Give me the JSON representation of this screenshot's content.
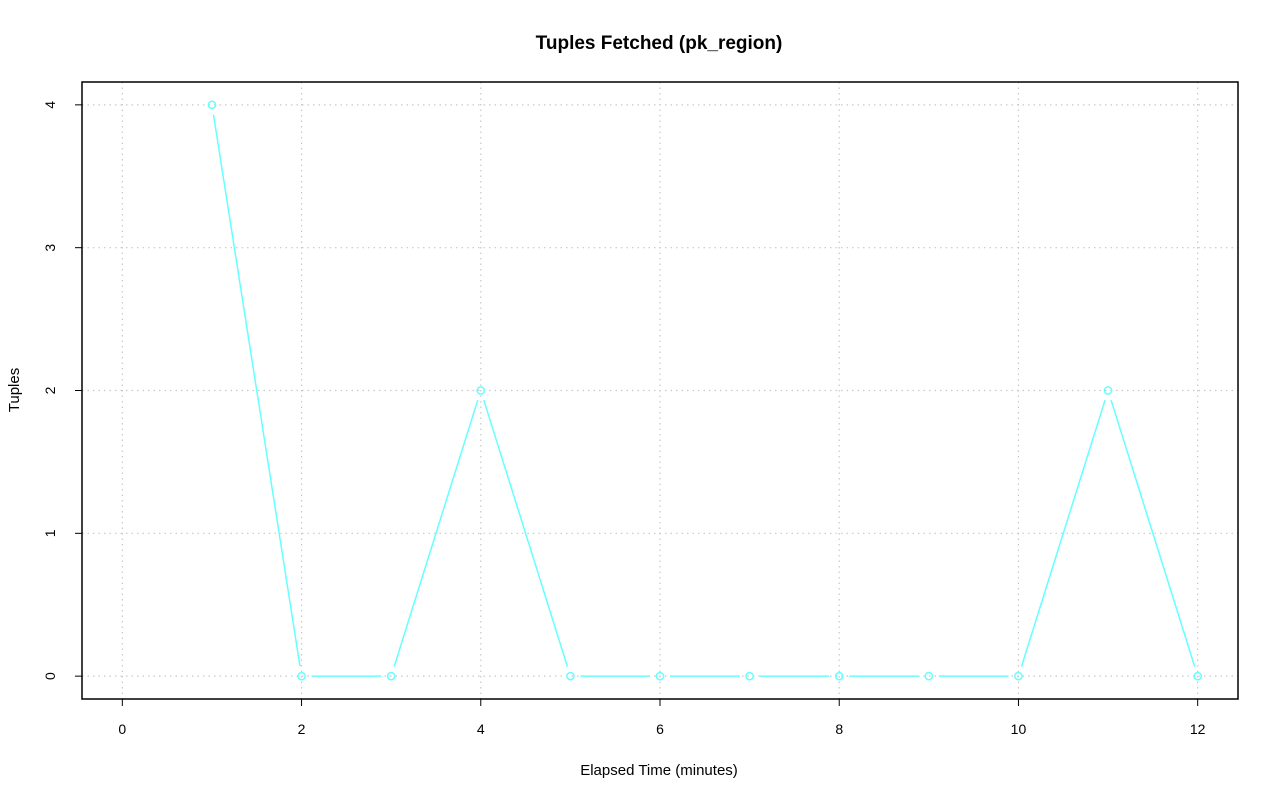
{
  "chart_data": {
    "type": "line",
    "title": "Tuples Fetched (pk_region)",
    "xlabel": "Elapsed Time (minutes)",
    "ylabel": "Tuples",
    "xlim": [
      -0.45,
      12.45
    ],
    "ylim": [
      -0.16,
      4.16
    ],
    "xticks": [
      0,
      2,
      4,
      6,
      8,
      10,
      12
    ],
    "yticks": [
      0,
      1,
      2,
      3,
      4
    ],
    "grid": true,
    "legend": "none",
    "series": [
      {
        "color": "#66ffff",
        "marker": "open-circle",
        "x": [
          1,
          2,
          3,
          4,
          5,
          6,
          7,
          8,
          9,
          10,
          11,
          12
        ],
        "y": [
          4,
          0,
          0,
          2,
          0,
          0,
          0,
          0,
          0,
          0,
          2,
          0
        ]
      }
    ]
  }
}
